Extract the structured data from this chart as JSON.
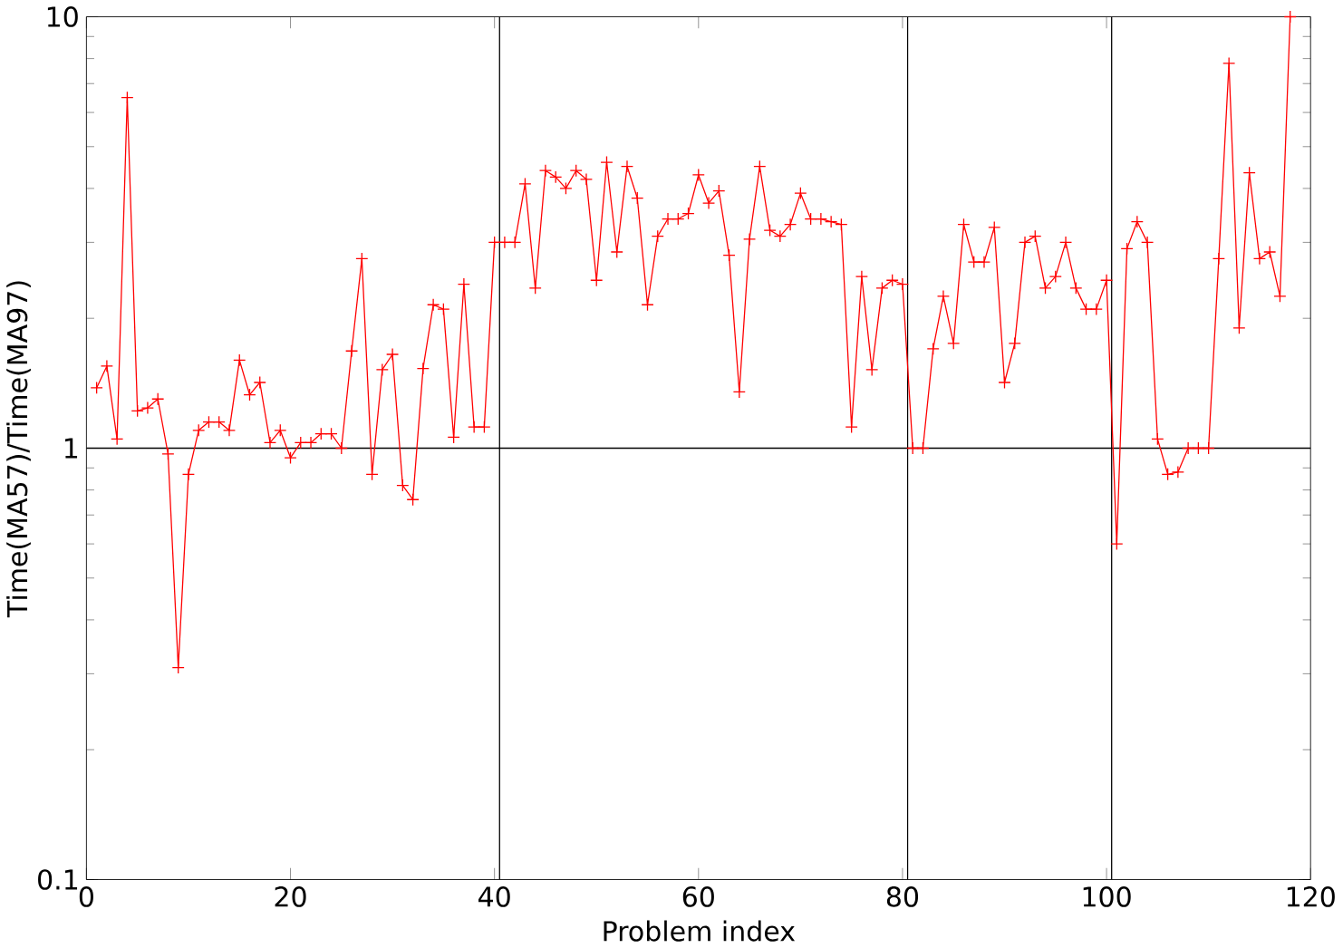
{
  "chart_data": {
    "type": "line",
    "xlabel": "Problem index",
    "ylabel": "Time(MA57)/Time(MA97)",
    "x": [
      1,
      2,
      3,
      4,
      5,
      6,
      7,
      8,
      9,
      10,
      11,
      12,
      13,
      14,
      15,
      16,
      17,
      18,
      19,
      20,
      21,
      22,
      23,
      24,
      25,
      26,
      27,
      28,
      29,
      30,
      31,
      32,
      33,
      34,
      35,
      36,
      37,
      38,
      39,
      40,
      41,
      42,
      43,
      44,
      45,
      46,
      47,
      48,
      49,
      50,
      51,
      52,
      53,
      54,
      55,
      56,
      57,
      58,
      59,
      60,
      61,
      62,
      63,
      64,
      65,
      66,
      67,
      68,
      69,
      70,
      71,
      72,
      73,
      74,
      75,
      76,
      77,
      78,
      79,
      80,
      81,
      82,
      83,
      84,
      85,
      86,
      87,
      88,
      89,
      90,
      91,
      92,
      93,
      94,
      95,
      96,
      97,
      98,
      99,
      100,
      101,
      102,
      103,
      104,
      105,
      106,
      107,
      108,
      109,
      110,
      111,
      112,
      113,
      114,
      115,
      116,
      117,
      118
    ],
    "series": [
      {
        "color": "#ff0000",
        "values": [
          1.38,
          1.55,
          1.05,
          6.5,
          1.22,
          1.24,
          1.3,
          0.97,
          0.31,
          0.87,
          1.1,
          1.15,
          1.15,
          1.1,
          1.6,
          1.33,
          1.42,
          1.03,
          1.1,
          0.95,
          1.03,
          1.03,
          1.08,
          1.08,
          1.0,
          1.68,
          2.75,
          0.87,
          1.52,
          1.65,
          0.82,
          0.76,
          1.53,
          2.15,
          2.1,
          1.06,
          2.4,
          1.12,
          1.12,
          3.0,
          3.0,
          3.0,
          4.1,
          2.35,
          4.4,
          4.25,
          4.0,
          4.4,
          4.2,
          2.45,
          4.6,
          2.85,
          4.5,
          3.8,
          2.15,
          3.1,
          3.4,
          3.4,
          3.5,
          4.3,
          3.7,
          3.95,
          2.8,
          1.35,
          3.05,
          4.5,
          3.2,
          3.1,
          3.3,
          3.9,
          3.4,
          3.4,
          3.35,
          3.3,
          1.12,
          2.5,
          1.52,
          2.35,
          2.45,
          2.4,
          1.0,
          1.0,
          1.7,
          2.25,
          1.75,
          3.3,
          2.7,
          2.7,
          3.25,
          1.42,
          1.75,
          3.0,
          3.1,
          2.35,
          2.5,
          3.0,
          2.35,
          2.1,
          2.1,
          2.45,
          0.6,
          2.9,
          3.35,
          3.0,
          1.05,
          0.87,
          0.88,
          1.0,
          1.0,
          1.0,
          2.75,
          7.8,
          1.9,
          4.35,
          2.75,
          2.85,
          2.25,
          10
        ]
      }
    ],
    "log": "y",
    "marker": "cross",
    "line_style": "solid",
    "xlim": [
      0,
      120
    ],
    "ylim": [
      0.1,
      10
    ],
    "xticks": [
      0,
      20,
      40,
      60,
      80,
      100,
      120
    ],
    "yticks": [
      0.1,
      1,
      10
    ],
    "ref_lines": [
      {
        "axis": "x",
        "value": 40.5,
        "color": "#000000"
      },
      {
        "axis": "x",
        "value": 80.5,
        "color": "#000000"
      },
      {
        "axis": "x",
        "value": 100.5,
        "color": "#000000"
      },
      {
        "axis": "y",
        "value": 1,
        "color": "#000000"
      }
    ]
  }
}
